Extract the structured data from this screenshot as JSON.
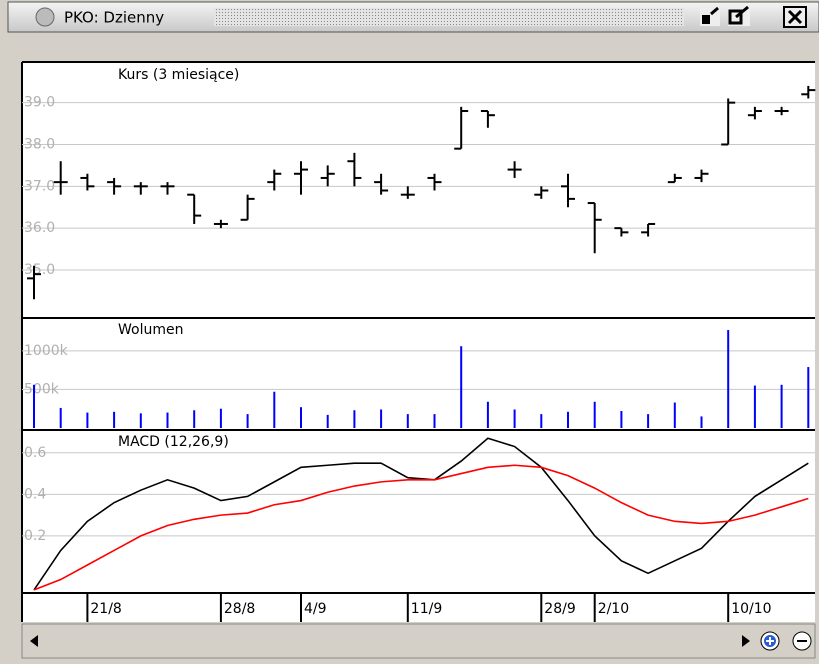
{
  "window": {
    "title": "PKO: Dzienny"
  },
  "chart_data": [
    {
      "type": "ohlc",
      "title": "Kurs (3 miesiące)",
      "open": [
        34.8,
        37.1,
        37.2,
        37.1,
        37.0,
        37.0,
        36.8,
        36.1,
        36.2,
        37.1,
        37.3,
        37.2,
        37.6,
        37.1,
        36.8,
        37.2,
        37.9,
        38.8,
        37.4,
        36.8,
        37.0,
        36.6,
        36.0,
        35.9,
        37.1,
        37.2,
        38.0,
        38.7,
        38.8,
        39.2
      ],
      "high": [
        35.1,
        37.6,
        37.3,
        37.2,
        37.1,
        37.1,
        36.8,
        36.2,
        36.8,
        37.4,
        37.6,
        37.5,
        37.8,
        37.3,
        37.0,
        37.3,
        38.9,
        38.8,
        37.6,
        37.0,
        37.3,
        36.6,
        36.0,
        36.1,
        37.3,
        37.4,
        39.1,
        38.9,
        38.9,
        39.4
      ],
      "low": [
        34.3,
        36.8,
        36.9,
        36.8,
        36.8,
        36.8,
        36.1,
        36.0,
        36.2,
        36.9,
        36.8,
        37.0,
        37.0,
        36.8,
        36.7,
        36.9,
        37.9,
        38.4,
        37.2,
        36.7,
        36.5,
        35.4,
        35.8,
        35.8,
        37.1,
        37.1,
        38.0,
        38.6,
        38.7,
        39.1
      ],
      "close": [
        34.9,
        37.1,
        37.0,
        37.0,
        37.0,
        37.0,
        36.3,
        36.1,
        36.7,
        37.3,
        37.4,
        37.3,
        37.2,
        36.9,
        36.8,
        37.1,
        38.8,
        38.7,
        37.4,
        36.9,
        36.7,
        36.2,
        35.9,
        36.1,
        37.2,
        37.3,
        39.0,
        38.8,
        38.8,
        39.3
      ],
      "color": "#000000",
      "ylim": [
        33.9,
        39.9
      ],
      "yticks": [
        {
          "value": 35,
          "label": "35.0"
        },
        {
          "value": 36,
          "label": "36.0"
        },
        {
          "value": 37,
          "label": "37.0"
        },
        {
          "value": 38,
          "label": "38.0"
        },
        {
          "value": 39,
          "label": "39.0"
        }
      ],
      "grid": true
    },
    {
      "type": "bar",
      "title": "Wolumen",
      "values": [
        560000,
        260000,
        200000,
        210000,
        190000,
        200000,
        230000,
        250000,
        180000,
        470000,
        270000,
        170000,
        230000,
        240000,
        180000,
        180000,
        1060000,
        340000,
        240000,
        180000,
        210000,
        340000,
        220000,
        180000,
        330000,
        150000,
        1270000,
        550000,
        560000,
        790000
      ],
      "color": "#0000ff",
      "ylim": [
        0,
        1400000
      ],
      "yticks": [
        {
          "value": 500000,
          "label": "500k"
        },
        {
          "value": 1000000,
          "label": "1000k"
        }
      ],
      "grid": true
    },
    {
      "type": "line",
      "title": "MACD (12,26,9)",
      "categories": [
        null,
        null,
        "21/8",
        null,
        null,
        null,
        null,
        "28/8",
        null,
        null,
        "4/9",
        null,
        null,
        null,
        "11/9",
        null,
        null,
        null,
        null,
        "28/9",
        null,
        "2/10",
        null,
        null,
        null,
        null,
        "10/10",
        null,
        null,
        null
      ],
      "series": [
        {
          "color": "#000000",
          "values": [
            -0.06,
            0.13,
            0.27,
            0.36,
            0.42,
            0.47,
            0.43,
            0.37,
            0.39,
            0.46,
            0.53,
            0.54,
            0.55,
            0.55,
            0.48,
            0.47,
            0.56,
            0.67,
            0.63,
            0.53,
            0.37,
            0.2,
            0.08,
            0.02,
            0.08,
            0.14,
            0.27,
            0.39,
            0.47,
            0.55
          ]
        },
        {
          "color": "#ff0000",
          "values": [
            -0.06,
            -0.01,
            0.06,
            0.13,
            0.2,
            0.25,
            0.28,
            0.3,
            0.31,
            0.35,
            0.37,
            0.41,
            0.44,
            0.46,
            0.47,
            0.47,
            0.5,
            0.53,
            0.54,
            0.53,
            0.49,
            0.43,
            0.36,
            0.3,
            0.27,
            0.26,
            0.27,
            0.3,
            0.34,
            0.38
          ]
        }
      ],
      "ylim": [
        -0.07,
        0.7
      ],
      "yticks": [
        0.2,
        0.4,
        0.6
      ],
      "grid": true
    }
  ]
}
